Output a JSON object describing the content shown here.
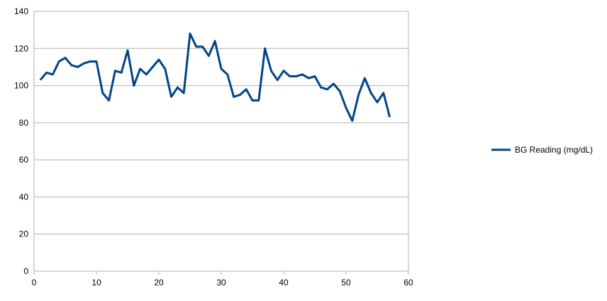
{
  "chart_data": {
    "type": "line",
    "title": "",
    "xlabel": "",
    "ylabel": "",
    "xlim": [
      0,
      60
    ],
    "ylim": [
      0,
      140
    ],
    "x_ticks": [
      0,
      10,
      20,
      30,
      40,
      50,
      60
    ],
    "y_ticks": [
      0,
      20,
      40,
      60,
      80,
      100,
      120,
      140
    ],
    "grid": "horizontal",
    "legend_position": "right",
    "series": [
      {
        "name": "BG Reading (mg/dL)",
        "color": "#004586",
        "x": [
          1,
          2,
          3,
          4,
          5,
          6,
          7,
          8,
          9,
          10,
          11,
          12,
          13,
          14,
          15,
          16,
          17,
          18,
          19,
          20,
          21,
          22,
          23,
          24,
          25,
          26,
          27,
          28,
          29,
          30,
          31,
          32,
          33,
          34,
          35,
          36,
          37,
          38,
          39,
          40,
          41,
          42,
          43,
          44,
          45,
          46,
          47,
          48,
          49,
          50,
          51,
          52,
          53,
          54,
          55,
          56,
          57
        ],
        "values": [
          103,
          107,
          106,
          113,
          115,
          111,
          110,
          112,
          113,
          113,
          96,
          92,
          108,
          107,
          119,
          100,
          109,
          106,
          110,
          114,
          109,
          94,
          99,
          96,
          128,
          121,
          121,
          116,
          124,
          109,
          106,
          94,
          95,
          98,
          92,
          92,
          120,
          108,
          103,
          108,
          105,
          105,
          106,
          104,
          105,
          99,
          98,
          101,
          97,
          88,
          81,
          95,
          104,
          96,
          91,
          96,
          83
        ]
      }
    ]
  }
}
